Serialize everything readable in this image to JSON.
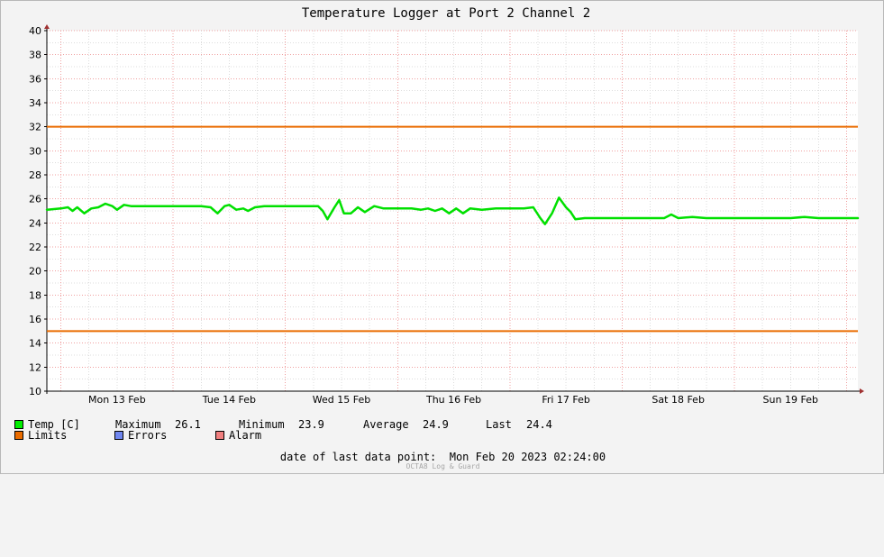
{
  "chart_data": {
    "type": "line",
    "title": "Temperature Logger at Port 2 Channel 2",
    "ylim": [
      10,
      40
    ],
    "y_ticks": [
      10,
      12,
      14,
      16,
      18,
      20,
      22,
      24,
      26,
      28,
      30,
      32,
      34,
      36,
      38,
      40
    ],
    "x_range": [
      "2023-02-12 21:00",
      "2023-02-20 02:24"
    ],
    "x_tick_labels": [
      {
        "label": "Mon 13 Feb",
        "at": "2023-02-13 12:00"
      },
      {
        "label": "Tue 14 Feb",
        "at": "2023-02-14 12:00"
      },
      {
        "label": "Wed 15 Feb",
        "at": "2023-02-15 12:00"
      },
      {
        "label": "Thu 16 Feb",
        "at": "2023-02-16 12:00"
      },
      {
        "label": "Fri 17 Feb",
        "at": "2023-02-17 12:00"
      },
      {
        "label": "Sat 18 Feb",
        "at": "2023-02-18 12:00"
      },
      {
        "label": "Sun 19 Feb",
        "at": "2023-02-19 12:00"
      }
    ],
    "grid": true,
    "series": [
      {
        "name": "Temp [C]",
        "color": "#00e000",
        "points": [
          [
            "2023-02-12 21:00",
            25.1
          ],
          [
            "2023-02-13 00:00",
            25.2
          ],
          [
            "2023-02-13 01:30",
            25.3
          ],
          [
            "2023-02-13 02:30",
            25.0
          ],
          [
            "2023-02-13 03:30",
            25.3
          ],
          [
            "2023-02-13 05:00",
            24.8
          ],
          [
            "2023-02-13 06:30",
            25.2
          ],
          [
            "2023-02-13 08:00",
            25.3
          ],
          [
            "2023-02-13 09:30",
            25.6
          ],
          [
            "2023-02-13 11:00",
            25.4
          ],
          [
            "2023-02-13 12:00",
            25.1
          ],
          [
            "2023-02-13 13:30",
            25.5
          ],
          [
            "2023-02-13 15:00",
            25.4
          ],
          [
            "2023-02-13 18:00",
            25.4
          ],
          [
            "2023-02-14 00:00",
            25.4
          ],
          [
            "2023-02-14 06:00",
            25.4
          ],
          [
            "2023-02-14 08:00",
            25.3
          ],
          [
            "2023-02-14 09:30",
            24.8
          ],
          [
            "2023-02-14 11:00",
            25.4
          ],
          [
            "2023-02-14 12:00",
            25.5
          ],
          [
            "2023-02-14 13:30",
            25.1
          ],
          [
            "2023-02-14 15:00",
            25.2
          ],
          [
            "2023-02-14 16:00",
            25.0
          ],
          [
            "2023-02-14 17:30",
            25.3
          ],
          [
            "2023-02-14 19:30",
            25.4
          ],
          [
            "2023-02-14 21:00",
            25.4
          ],
          [
            "2023-02-15 00:00",
            25.4
          ],
          [
            "2023-02-15 06:00",
            25.4
          ],
          [
            "2023-02-15 07:00",
            25.4
          ],
          [
            "2023-02-15 08:00",
            25.0
          ],
          [
            "2023-02-15 09:00",
            24.3
          ],
          [
            "2023-02-15 10:30",
            25.3
          ],
          [
            "2023-02-15 11:30",
            25.9
          ],
          [
            "2023-02-15 12:30",
            24.8
          ],
          [
            "2023-02-15 14:00",
            24.8
          ],
          [
            "2023-02-15 15:30",
            25.3
          ],
          [
            "2023-02-15 17:00",
            24.9
          ],
          [
            "2023-02-15 19:00",
            25.4
          ],
          [
            "2023-02-15 21:00",
            25.2
          ],
          [
            "2023-02-16 00:00",
            25.2
          ],
          [
            "2023-02-16 03:00",
            25.2
          ],
          [
            "2023-02-16 05:00",
            25.1
          ],
          [
            "2023-02-16 06:30",
            25.2
          ],
          [
            "2023-02-16 08:00",
            25.0
          ],
          [
            "2023-02-16 09:30",
            25.2
          ],
          [
            "2023-02-16 11:00",
            24.8
          ],
          [
            "2023-02-16 12:30",
            25.2
          ],
          [
            "2023-02-16 14:00",
            24.8
          ],
          [
            "2023-02-16 15:30",
            25.2
          ],
          [
            "2023-02-16 18:00",
            25.1
          ],
          [
            "2023-02-16 21:00",
            25.2
          ],
          [
            "2023-02-17 00:00",
            25.2
          ],
          [
            "2023-02-17 03:00",
            25.2
          ],
          [
            "2023-02-17 05:00",
            25.3
          ],
          [
            "2023-02-17 06:30",
            24.4
          ],
          [
            "2023-02-17 07:30",
            23.9
          ],
          [
            "2023-02-17 09:00",
            24.8
          ],
          [
            "2023-02-17 10:30",
            26.1
          ],
          [
            "2023-02-17 12:00",
            25.3
          ],
          [
            "2023-02-17 13:00",
            24.9
          ],
          [
            "2023-02-17 14:00",
            24.3
          ],
          [
            "2023-02-17 16:00",
            24.4
          ],
          [
            "2023-02-17 20:00",
            24.4
          ],
          [
            "2023-02-18 00:00",
            24.4
          ],
          [
            "2023-02-18 06:00",
            24.4
          ],
          [
            "2023-02-18 09:00",
            24.4
          ],
          [
            "2023-02-18 10:30",
            24.7
          ],
          [
            "2023-02-18 12:00",
            24.4
          ],
          [
            "2023-02-18 15:00",
            24.5
          ],
          [
            "2023-02-18 18:00",
            24.4
          ],
          [
            "2023-02-19 00:00",
            24.4
          ],
          [
            "2023-02-19 06:00",
            24.4
          ],
          [
            "2023-02-19 12:00",
            24.4
          ],
          [
            "2023-02-19 15:00",
            24.5
          ],
          [
            "2023-02-19 18:00",
            24.4
          ],
          [
            "2023-02-20 00:00",
            24.4
          ],
          [
            "2023-02-20 02:24",
            24.4
          ]
        ]
      },
      {
        "name": "Limits",
        "color": "#ea6c00",
        "values": [
          32,
          15
        ]
      }
    ]
  },
  "legend": {
    "temp": {
      "label": "Temp [C]",
      "color": "#00ee00"
    },
    "max_label": "Maximum",
    "max_value": "26.1",
    "min_label": "Minimum",
    "min_value": "23.9",
    "avg_label": "Average",
    "avg_value": "24.9",
    "last_label": "Last",
    "last_value": "24.4",
    "limits": {
      "label": "Limits",
      "color": "#ea6c00"
    },
    "errors": {
      "label": "Errors",
      "color": "#7087f0"
    },
    "alarm": {
      "label": "Alarm",
      "color": "#f07f7f"
    }
  },
  "footer": {
    "date_label": "date of last data point:",
    "date_value": "Mon Feb 20 2023 02:24:00",
    "credit": "OCTA8 Log & Guard"
  }
}
